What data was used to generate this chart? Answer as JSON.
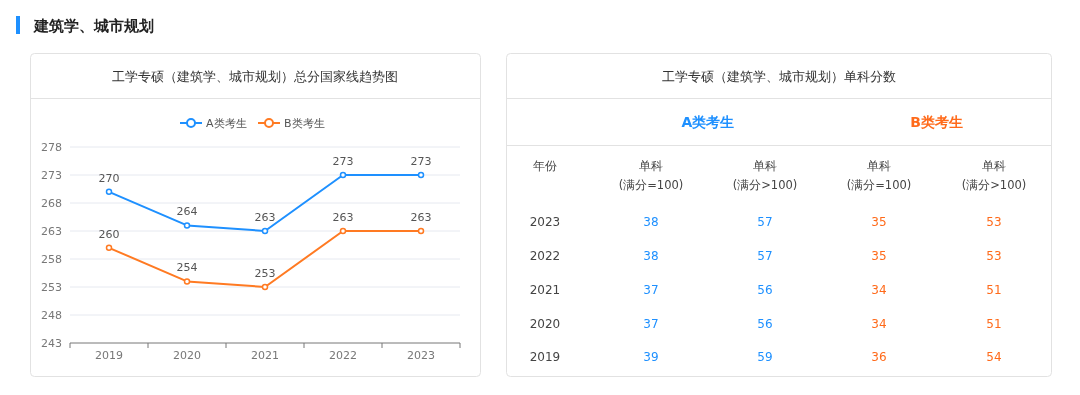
{
  "chart_data": [
    {
      "type": "line",
      "title": "工学专硕（建筑学、城市规划）总分国家线趋势图",
      "annotations": [
        "建筑学、城市规划"
      ],
      "categories": [
        "2019",
        "2020",
        "2021",
        "2022",
        "2023"
      ],
      "series": [
        {
          "name": "A类考生",
          "color": "#1e90ff",
          "values": [
            270,
            264,
            263,
            273,
            273
          ]
        },
        {
          "name": "B类考生",
          "color": "#ff7a22",
          "values": [
            260,
            254,
            253,
            263,
            263
          ]
        }
      ],
      "ylim": [
        243,
        278
      ],
      "yticks": [
        243,
        248,
        253,
        258,
        263,
        268,
        273,
        278
      ],
      "grid": "y",
      "legend": "top",
      "marker": "circle",
      "data_labels": true
    },
    {
      "type": "heatmap",
      "title": "工学专硕（建筑学、城市规划）单科分数",
      "annotations": [
        "年份",
        "A类考生",
        "B类考生"
      ],
      "categories": [
        "单科\n(满分=100)",
        "单科\n(满分>100)",
        "单科\n(满分=100)",
        "单科\n(满分>100)"
      ],
      "y_categories": [
        "2023",
        "2022",
        "2021",
        "2020",
        "2019"
      ],
      "cells": [
        [
          38,
          57,
          35,
          53
        ],
        [
          38,
          57,
          35,
          53
        ],
        [
          37,
          56,
          34,
          51
        ],
        [
          37,
          56,
          34,
          51
        ],
        [
          39,
          59,
          36,
          54
        ]
      ],
      "colors": [
        "#1e90ff",
        "#1e90ff",
        "#ff6a1a",
        "#ff6a1a"
      ],
      "data_labels": true
    }
  ]
}
